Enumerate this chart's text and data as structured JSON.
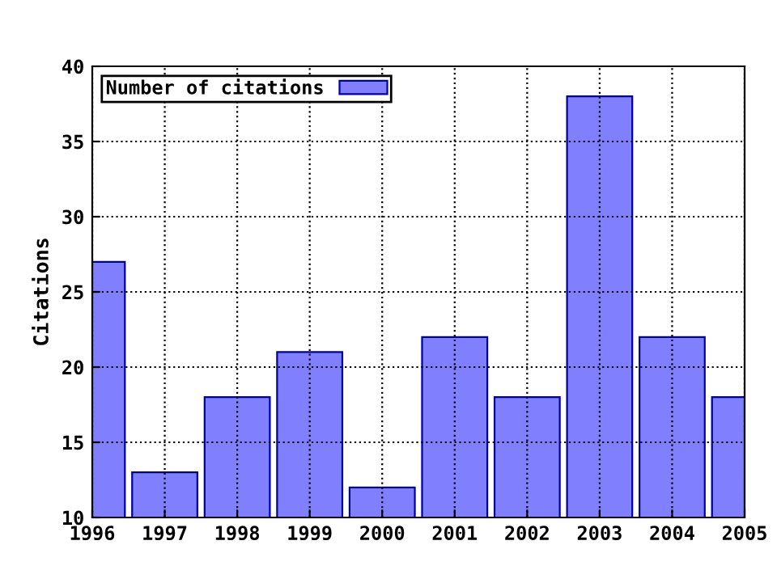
{
  "chart_data": {
    "type": "bar",
    "ylabel": "Citations",
    "x": [
      1996,
      1997,
      1998,
      1999,
      2000,
      2001,
      2002,
      2003,
      2004,
      2005
    ],
    "series": [
      {
        "name": "Number of citations",
        "color": "#8080ff",
        "values": [
          27,
          13,
          18,
          21,
          12,
          22,
          18,
          38,
          22,
          18
        ]
      }
    ],
    "xlim": [
      1996,
      2005
    ],
    "xticks": [
      1996,
      1997,
      1998,
      1999,
      2000,
      2001,
      2002,
      2003,
      2004,
      2005
    ],
    "ylim": [
      10,
      40
    ],
    "yticks": [
      10,
      15,
      20,
      25,
      30,
      35,
      40
    ],
    "grid": true,
    "legend": "top left",
    "line_style": "dotted"
  }
}
